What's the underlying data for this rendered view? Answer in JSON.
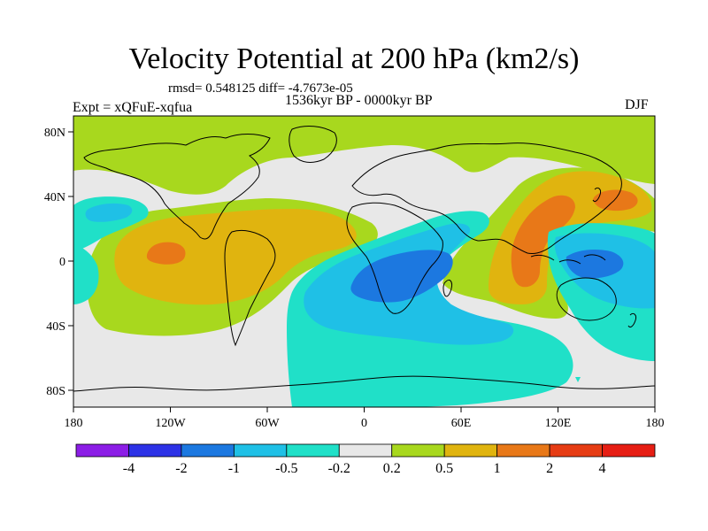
{
  "header": {
    "title": "Velocity Potential at 200 hPa (km2/s)",
    "stats": "rmsd= 0.548125 diff= -4.7673e-05",
    "expt": "Expt = xQFuE-xqfua",
    "period": "1536kyr BP - 0000kyr BP",
    "season": "DJF"
  },
  "axes": {
    "x_ticks": [
      "180",
      "120W",
      "60W",
      "0",
      "60E",
      "120E",
      "180"
    ],
    "y_ticks": [
      "80N",
      "40N",
      "0",
      "40S",
      "80S"
    ]
  },
  "colorbar": {
    "labels": [
      "-4",
      "-2",
      "-1",
      "-0.5",
      "-0.2",
      "0.2",
      "0.5",
      "1",
      "2",
      "4"
    ],
    "colors": [
      "#8c1ee6",
      "#2d32e6",
      "#1c78e0",
      "#1fc0e6",
      "#20e0c8",
      "#e8e8e8",
      "#a8d81e",
      "#e0b40f",
      "#e87818",
      "#e63c14",
      "#e61e14"
    ]
  },
  "fill_colors": {
    "background": "#e8e8e8",
    "green": "#a8d81e",
    "yellow": "#e0b40f",
    "orange": "#e87818",
    "cyan": "#20e0c8",
    "lightblue": "#1fc0e6",
    "blue": "#1c78e0"
  }
}
